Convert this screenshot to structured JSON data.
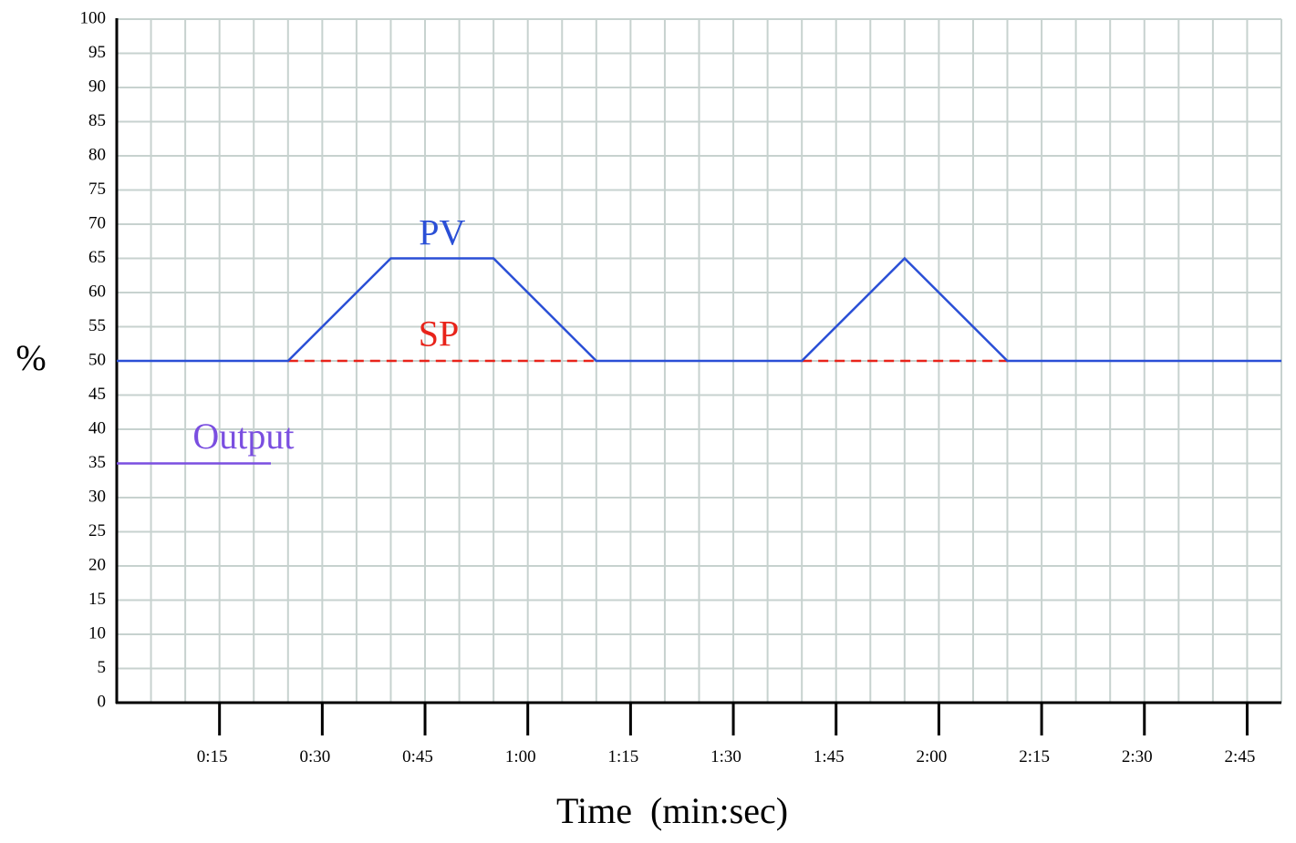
{
  "chart_data": {
    "type": "line",
    "xlabel": "Time  (min:sec)",
    "ylabel": "%",
    "xlim": [
      0,
      170
    ],
    "ylim": [
      0,
      100
    ],
    "grid": true,
    "y_ticks": [
      0,
      5,
      10,
      15,
      20,
      25,
      30,
      35,
      40,
      45,
      50,
      55,
      60,
      65,
      70,
      75,
      80,
      85,
      90,
      95,
      100
    ],
    "x_ticks": [
      {
        "value": 15,
        "label": "0:15"
      },
      {
        "value": 30,
        "label": "0:30"
      },
      {
        "value": 45,
        "label": "0:45"
      },
      {
        "value": 60,
        "label": "1:00"
      },
      {
        "value": 75,
        "label": "1:15"
      },
      {
        "value": 90,
        "label": "1:30"
      },
      {
        "value": 105,
        "label": "1:45"
      },
      {
        "value": 120,
        "label": "2:00"
      },
      {
        "value": 135,
        "label": "2:15"
      },
      {
        "value": 150,
        "label": "2:30"
      },
      {
        "value": 165,
        "label": "2:45"
      }
    ],
    "series": [
      {
        "name": "PV",
        "color": "#2a4fd6",
        "style": "solid",
        "label_at": {
          "x": 47.5,
          "y": 67
        },
        "points": [
          [
            0,
            50
          ],
          [
            25,
            50
          ],
          [
            40,
            65
          ],
          [
            55,
            65
          ],
          [
            70,
            50
          ],
          [
            100,
            50
          ],
          [
            115,
            65
          ],
          [
            130,
            50
          ],
          [
            170,
            50
          ]
        ]
      },
      {
        "name": "SP",
        "color": "#e8231a",
        "style": "dashed",
        "label_at": {
          "x": 47,
          "y": 52.2
        },
        "points": [
          [
            25,
            50
          ],
          [
            70,
            50
          ],
          [
            100,
            50
          ],
          [
            130,
            50
          ]
        ]
      },
      {
        "name": "Output",
        "color": "#7a4ee0",
        "style": "solid",
        "label_at": {
          "x": 18.5,
          "y": 37.2
        },
        "points": [
          [
            0,
            35
          ],
          [
            22.5,
            35
          ]
        ]
      }
    ]
  }
}
